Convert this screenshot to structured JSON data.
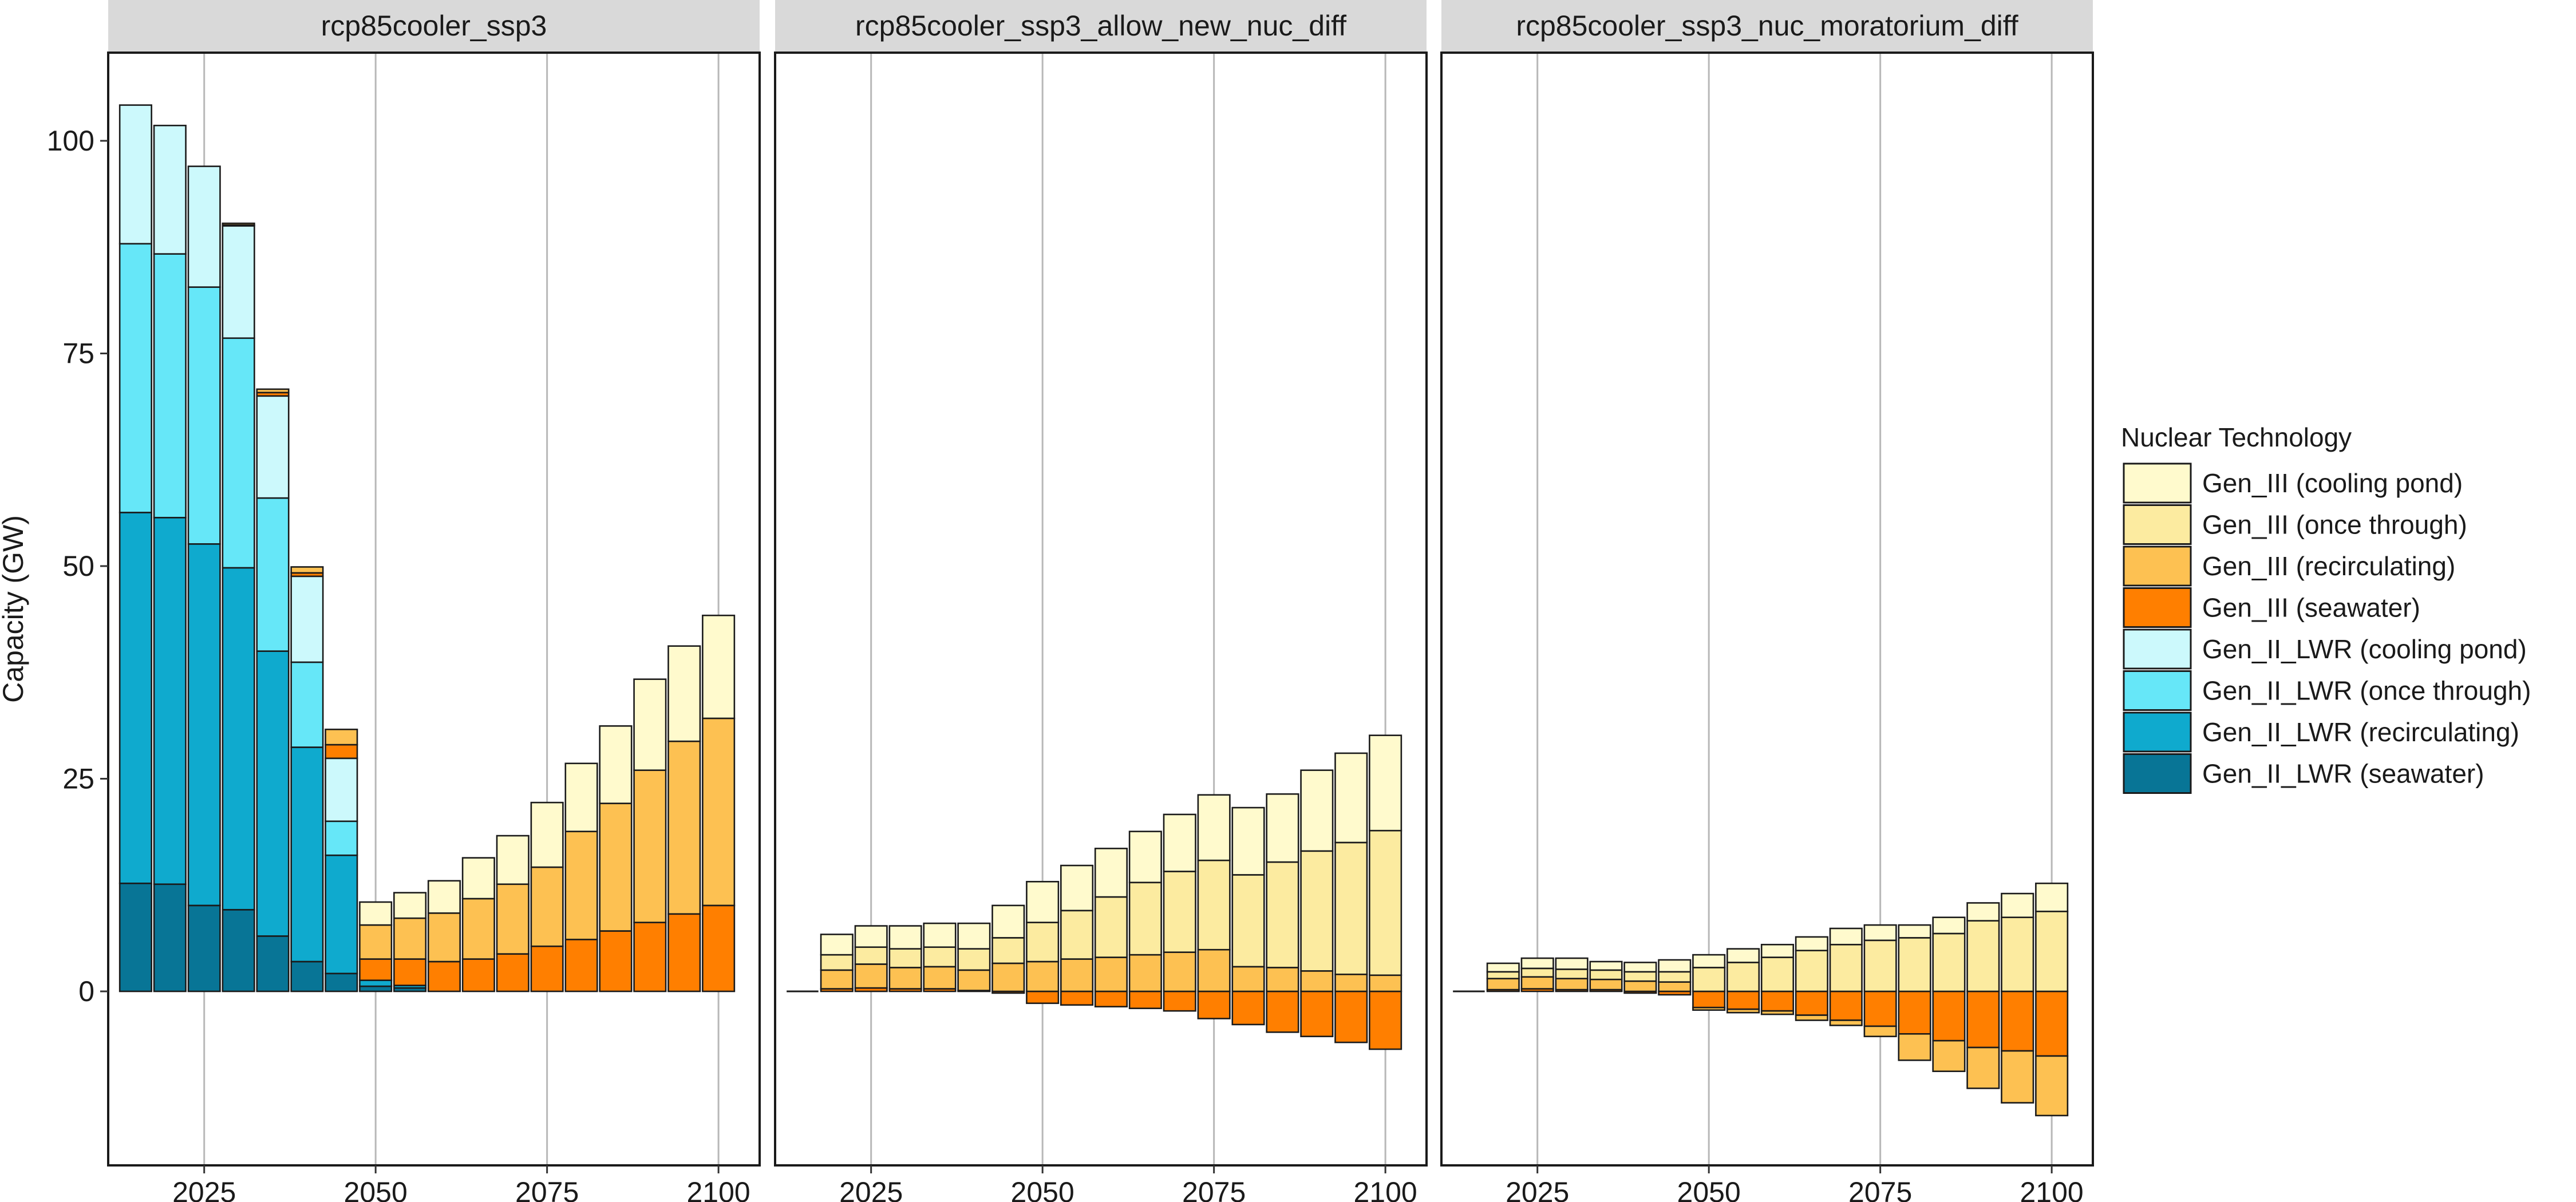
{
  "chart_data": {
    "type": "bar",
    "stacked": true,
    "y_axis_label": "Capacity (GW)",
    "x_ticks": [
      2025,
      2050,
      2075,
      2100
    ],
    "y_ticks": [
      0,
      25,
      50,
      75,
      100
    ],
    "xlim": [
      2011,
      2106
    ],
    "ylim": [
      -20,
      110
    ],
    "x": [
      2015,
      2020,
      2025,
      2030,
      2035,
      2040,
      2045,
      2050,
      2055,
      2060,
      2065,
      2070,
      2075,
      2080,
      2085,
      2090,
      2095,
      2100
    ],
    "grid": "vertical major gridlines",
    "legend": {
      "title": "Nuclear Technology",
      "placement": "right",
      "entries": [
        {
          "name": "Gen_III (cooling pond)",
          "color": "#FFFACD"
        },
        {
          "name": "Gen_III (once through)",
          "color": "#FCEBA0"
        },
        {
          "name": "Gen_III (recirculating)",
          "color": "#FDC152"
        },
        {
          "name": "Gen_III (seawater)",
          "color": "#FF7F00"
        },
        {
          "name": "Gen_II_LWR (cooling pond)",
          "color": "#CCF9FC"
        },
        {
          "name": "Gen_II_LWR (once through)",
          "color": "#66E7F8"
        },
        {
          "name": "Gen_II_LWR (recirculating)",
          "color": "#0FAACE"
        },
        {
          "name": "Gen_II_LWR (seawater)",
          "color": "#087596"
        }
      ]
    },
    "panels": [
      {
        "title": "rcp85cooler_ssp3",
        "series": [
          {
            "name": "Gen_II_LWR (seawater)",
            "values": [
              12.7,
              12.6,
              10.1,
              9.6,
              6.5,
              3.5,
              2.1,
              0.6,
              0.4,
              0,
              0,
              0,
              0,
              0,
              0,
              0,
              0,
              0
            ]
          },
          {
            "name": "Gen_II_LWR (recirculating)",
            "values": [
              43.6,
              43.1,
              42.5,
              40.2,
              33.5,
              25.2,
              13.9,
              0.7,
              0.3,
              0,
              0,
              0,
              0,
              0,
              0,
              0,
              0,
              0
            ]
          },
          {
            "name": "Gen_II_LWR (once through)",
            "values": [
              31.6,
              31.0,
              30.2,
              27.0,
              18.0,
              10.0,
              4.0,
              0,
              0,
              0,
              0,
              0,
              0,
              0,
              0,
              0,
              0,
              0
            ]
          },
          {
            "name": "Gen_II_LWR (cooling pond)",
            "values": [
              16.3,
              15.1,
              14.2,
              13.2,
              12.0,
              10.1,
              7.4,
              0,
              0,
              0,
              0,
              0,
              0,
              0,
              0,
              0,
              0,
              0
            ]
          },
          {
            "name": "Gen_III (seawater)",
            "values": [
              0,
              0,
              0,
              0.1,
              0.4,
              0.4,
              1.6,
              2.5,
              3.1,
              3.5,
              3.8,
              4.4,
              5.3,
              6.1,
              7.1,
              8.1,
              9.1,
              10.1
            ]
          },
          {
            "name": "Gen_III (recirculating)",
            "values": [
              0,
              0,
              0,
              0.2,
              0.4,
              0.7,
              1.8,
              4.0,
              4.8,
              5.7,
              7.1,
              8.2,
              9.3,
              12.7,
              15.0,
              17.9,
              20.3,
              22.0
            ]
          },
          {
            "name": "Gen_III (once through)",
            "values": [
              0,
              0,
              0,
              0,
              0,
              0,
              0,
              0,
              0,
              0,
              0,
              0,
              0,
              0,
              0,
              0,
              0,
              0
            ]
          },
          {
            "name": "Gen_III (cooling pond)",
            "values": [
              0,
              0,
              0,
              0,
              0,
              0,
              0,
              2.7,
              3.0,
              3.8,
              4.8,
              5.7,
              7.6,
              8.0,
              9.1,
              10.7,
              11.2,
              12.1
            ]
          }
        ]
      },
      {
        "title": "rcp85cooler_ssp3_allow_new_nuc_diff",
        "series": [
          {
            "name": "Gen_II_LWR (seawater)",
            "values": [
              0,
              0,
              0,
              0,
              0,
              0,
              0,
              0,
              0,
              0,
              0,
              0,
              0,
              0,
              0,
              0,
              0,
              0
            ]
          },
          {
            "name": "Gen_II_LWR (recirculating)",
            "values": [
              0,
              0,
              0,
              0,
              0,
              0,
              0,
              0,
              0,
              0,
              0,
              0,
              0,
              0,
              0,
              0,
              0,
              0
            ]
          },
          {
            "name": "Gen_II_LWR (once through)",
            "values": [
              0,
              0,
              0,
              0,
              0,
              0,
              0,
              0,
              0,
              0,
              0,
              0,
              0,
              0,
              0,
              0,
              0,
              0
            ]
          },
          {
            "name": "Gen_II_LWR (cooling pond)",
            "values": [
              0,
              0,
              0,
              0,
              0,
              0,
              0,
              0,
              0,
              0,
              0,
              0,
              0,
              0,
              0,
              0,
              0,
              0
            ]
          },
          {
            "name": "Gen_III (seawater)",
            "values": [
              0,
              0.3,
              0.4,
              0.3,
              0.3,
              0.1,
              -0.2,
              -1.4,
              -1.6,
              -1.8,
              -2.0,
              -2.3,
              -3.2,
              -3.9,
              -4.8,
              -5.3,
              -6.0,
              -6.8
            ]
          },
          {
            "name": "Gen_III (recirculating)",
            "values": [
              0,
              2.2,
              2.8,
              2.5,
              2.6,
              2.4,
              3.3,
              3.5,
              3.8,
              4.0,
              4.3,
              4.6,
              4.9,
              2.9,
              2.8,
              2.4,
              2.0,
              1.9
            ]
          },
          {
            "name": "Gen_III (once through)",
            "values": [
              0,
              1.8,
              2.0,
              2.2,
              2.3,
              2.5,
              3.0,
              4.6,
              5.7,
              7.1,
              8.5,
              9.5,
              10.5,
              10.8,
              12.4,
              14.1,
              15.5,
              17.0
            ]
          },
          {
            "name": "Gen_III (cooling pond)",
            "values": [
              0,
              2.4,
              2.5,
              2.7,
              2.8,
              3.0,
              3.8,
              4.8,
              5.3,
              5.7,
              6.0,
              6.7,
              7.7,
              7.9,
              8.0,
              9.5,
              10.5,
              11.2
            ]
          }
        ]
      },
      {
        "title": "rcp85cooler_ssp3_nuc_moratorium_diff",
        "series": [
          {
            "name": "Gen_II_LWR (seawater)",
            "values": [
              0,
              0,
              0,
              0,
              0,
              0,
              0,
              0,
              0,
              0,
              0,
              0,
              0,
              0,
              0,
              0,
              0,
              0
            ]
          },
          {
            "name": "Gen_II_LWR (recirculating)",
            "values": [
              0,
              0,
              0,
              0,
              0,
              0,
              0,
              0,
              0,
              0,
              0,
              0,
              0,
              0,
              0,
              0,
              0,
              0
            ]
          },
          {
            "name": "Gen_II_LWR (once through)",
            "values": [
              0,
              0,
              0,
              0,
              0,
              0,
              0,
              0,
              0,
              0,
              0,
              0,
              0,
              0,
              0,
              0,
              0,
              0
            ]
          },
          {
            "name": "Gen_II_LWR (cooling pond)",
            "values": [
              0,
              0,
              0,
              0,
              0,
              0,
              0,
              0,
              0,
              0,
              0,
              0,
              0,
              0,
              0,
              0,
              0,
              0
            ]
          },
          {
            "name": "Gen_III (seawater)",
            "values": [
              0,
              0.2,
              0.3,
              0.2,
              0.2,
              -0.2,
              -0.4,
              -1.9,
              -2.1,
              -2.3,
              -2.8,
              -3.4,
              -4.1,
              -5.0,
              -5.8,
              -6.6,
              -7.0,
              -7.6
            ]
          },
          {
            "name": "Gen_III (recirculating)",
            "values": [
              0,
              1.3,
              1.4,
              1.3,
              1.2,
              1.2,
              1.1,
              -0.3,
              -0.4,
              -0.4,
              -0.6,
              -0.6,
              -1.2,
              -3.1,
              -3.6,
              -4.8,
              -6.1,
              -7.0
            ]
          },
          {
            "name": "Gen_III (once through)",
            "values": [
              0,
              0.8,
              1.0,
              1.1,
              1.1,
              1.1,
              1.2,
              2.8,
              3.4,
              4.0,
              4.8,
              5.5,
              6.0,
              6.3,
              6.8,
              8.3,
              8.7,
              9.4
            ]
          },
          {
            "name": "Gen_III (cooling pond)",
            "values": [
              0,
              1.0,
              1.2,
              1.3,
              1.0,
              1.1,
              1.4,
              1.5,
              1.6,
              1.5,
              1.6,
              1.9,
              1.8,
              1.5,
              1.9,
              2.1,
              2.8,
              3.3
            ]
          }
        ]
      }
    ]
  }
}
